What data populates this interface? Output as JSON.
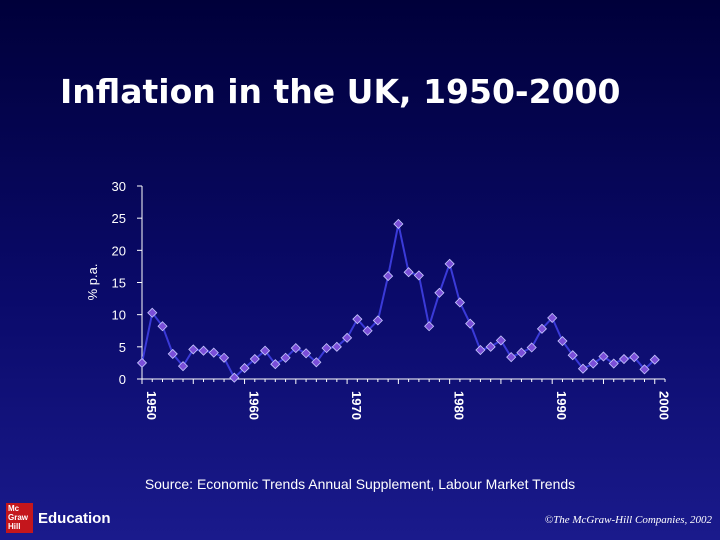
{
  "title": "Inflation in the UK, 1950-2000",
  "source": "Source: Economic Trends Annual Supplement, Labour Market Trends",
  "copyright": "©The McGraw-Hill Companies, 2002",
  "logo": {
    "lines": [
      "Mc",
      "Graw",
      "Hill"
    ],
    "word": "Education",
    "color": "#c4161c"
  },
  "colors": {
    "line": "#3a3ad8",
    "marker": "#7a4ed8",
    "marker_stroke": "#c8c8ff",
    "axis": "#ffffff"
  },
  "chart_data": {
    "type": "line",
    "ylabel": "% p.a.",
    "xlabel": "",
    "ylim": [
      0,
      30
    ],
    "yticks": [
      0,
      5,
      10,
      15,
      20,
      25,
      30
    ],
    "xlim": [
      1950,
      2001
    ],
    "xticks": [
      1950,
      1960,
      1970,
      1980,
      1990,
      2000
    ],
    "x": [
      1950,
      1951,
      1952,
      1953,
      1954,
      1955,
      1956,
      1957,
      1958,
      1959,
      1960,
      1961,
      1962,
      1963,
      1964,
      1965,
      1966,
      1967,
      1968,
      1969,
      1970,
      1971,
      1972,
      1973,
      1974,
      1975,
      1976,
      1977,
      1978,
      1979,
      1980,
      1981,
      1982,
      1983,
      1984,
      1985,
      1986,
      1987,
      1988,
      1989,
      1990,
      1991,
      1992,
      1993,
      1994,
      1995,
      1996,
      1997,
      1998,
      1999,
      2000
    ],
    "series": [
      {
        "values": [
          2.5,
          10.3,
          8.2,
          3.9,
          2.0,
          4.6,
          4.4,
          4.1,
          3.3,
          0.2,
          1.7,
          3.1,
          4.4,
          2.3,
          3.3,
          4.8,
          4.0,
          2.6,
          4.8,
          5.0,
          6.4,
          9.3,
          7.5,
          9.1,
          16.0,
          24.1,
          16.6,
          16.1,
          8.2,
          13.4,
          17.9,
          11.9,
          8.6,
          4.5,
          5.0,
          6.0,
          3.4,
          4.1,
          4.9,
          7.8,
          9.5,
          5.9,
          3.7,
          1.6,
          2.4,
          3.5,
          2.4,
          3.1,
          3.4,
          1.5,
          3.0
        ]
      }
    ],
    "grid": false,
    "legend": "none"
  }
}
